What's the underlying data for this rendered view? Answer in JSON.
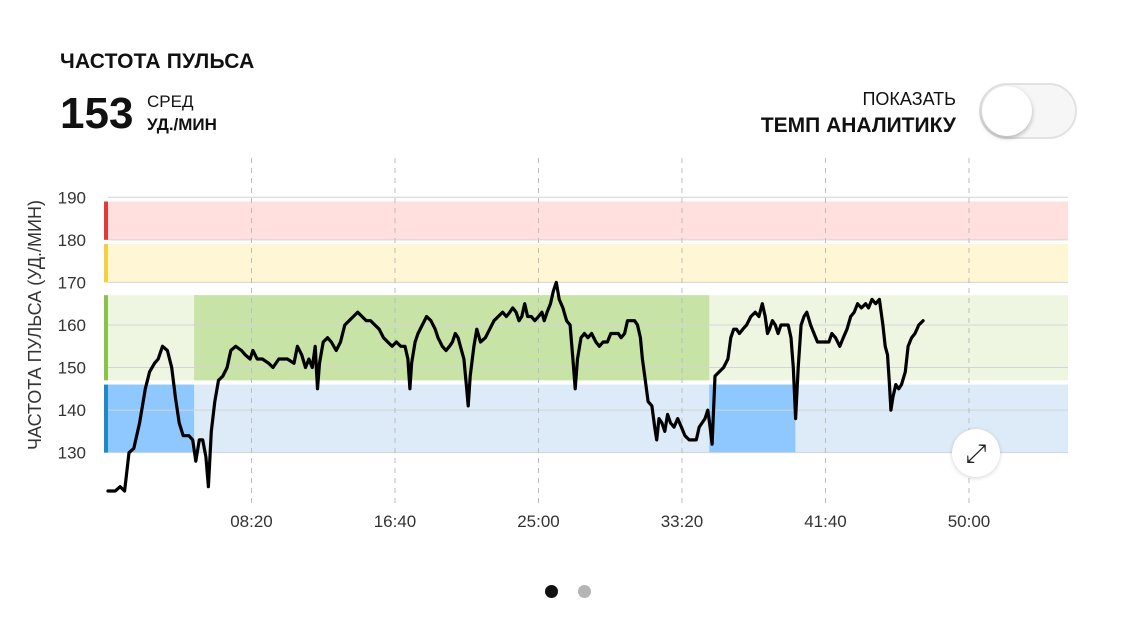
{
  "header": {
    "title": "ЧАСТОТА ПУЛЬСА",
    "avg_value": "153",
    "avg_label": "СРЕД",
    "avg_unit": "УД./МИН"
  },
  "toggle": {
    "line1": "ПОКАЗАТЬ",
    "line2": "ТЕМП АНАЛИТИКУ",
    "on": false
  },
  "controls": {
    "expand_icon": "expand-icon",
    "pager_dots": 2,
    "active_dot": 0
  },
  "chart_data": {
    "type": "line",
    "title": "",
    "xlabel": "",
    "ylabel": "ЧАСТОТА ПУЛЬСА (УД./МИН)",
    "xlim": [
      0,
      3345
    ],
    "ylim": [
      121,
      191
    ],
    "y_ticks": [
      190,
      180,
      170,
      160,
      150,
      140,
      130
    ],
    "x_ticks": [
      {
        "value": 500,
        "label": "08:20"
      },
      {
        "value": 1000,
        "label": "16:40"
      },
      {
        "value": 1500,
        "label": "25:00"
      },
      {
        "value": 2000,
        "label": "33:20"
      },
      {
        "value": 2500,
        "label": "41:40"
      },
      {
        "value": 3000,
        "label": "50:00"
      }
    ],
    "x_tick_labels_visible": [
      500,
      1000,
      1500,
      2000,
      2500,
      3000
    ],
    "x_grid_dashed": [
      500,
      1000,
      1500,
      2000,
      2500,
      3000
    ],
    "zones": [
      {
        "from": 180,
        "to": 189,
        "bar_color": "#e53935",
        "fill": "#ffe0de"
      },
      {
        "from": 170,
        "to": 179,
        "bar_color": "#f4d03f",
        "fill": "#fff6d6"
      },
      {
        "from": 147,
        "to": 167,
        "bar_color": "#8bc34a",
        "fill": "#eef6e2"
      },
      {
        "from": 130,
        "to": 146,
        "bar_color": "#1e88c8",
        "fill": "#dcebf7"
      }
    ],
    "highlights": [
      {
        "x_from": 0,
        "x_to": 300,
        "y_from": 130,
        "y_to": 146,
        "color": "#8ec8ff"
      },
      {
        "x_from": 300,
        "x_to": 2095,
        "y_from": 147,
        "y_to": 167,
        "color": "#c7e3a6"
      },
      {
        "x_from": 2095,
        "x_to": 2395,
        "y_from": 130,
        "y_to": 146,
        "color": "#8ec8ff"
      }
    ],
    "series": [
      {
        "color": "#000000",
        "points": [
          [
            0,
            121
          ],
          [
            25,
            121
          ],
          [
            42,
            122
          ],
          [
            58,
            121
          ],
          [
            73,
            130
          ],
          [
            90,
            131
          ],
          [
            110,
            137
          ],
          [
            130,
            145
          ],
          [
            145,
            149
          ],
          [
            162,
            151
          ],
          [
            175,
            152
          ],
          [
            190,
            155
          ],
          [
            207,
            154
          ],
          [
            222,
            150
          ],
          [
            235,
            143
          ],
          [
            248,
            137
          ],
          [
            262,
            134
          ],
          [
            282,
            134
          ],
          [
            295,
            133
          ],
          [
            306,
            128
          ],
          [
            318,
            133
          ],
          [
            330,
            133
          ],
          [
            341,
            129
          ],
          [
            350,
            122
          ],
          [
            360,
            135
          ],
          [
            372,
            142
          ],
          [
            385,
            147
          ],
          [
            400,
            148
          ],
          [
            415,
            150
          ],
          [
            428,
            154
          ],
          [
            445,
            155
          ],
          [
            465,
            154
          ],
          [
            478,
            153
          ],
          [
            495,
            152
          ],
          [
            505,
            154
          ],
          [
            520,
            152
          ],
          [
            538,
            152
          ],
          [
            560,
            151
          ],
          [
            575,
            150
          ],
          [
            595,
            152
          ],
          [
            625,
            152
          ],
          [
            648,
            151
          ],
          [
            660,
            155
          ],
          [
            675,
            153
          ],
          [
            688,
            150
          ],
          [
            700,
            152
          ],
          [
            712,
            150
          ],
          [
            722,
            155
          ],
          [
            730,
            145
          ],
          [
            737,
            151
          ],
          [
            750,
            156
          ],
          [
            765,
            157
          ],
          [
            778,
            156
          ],
          [
            795,
            154
          ],
          [
            810,
            156
          ],
          [
            825,
            160
          ],
          [
            840,
            161
          ],
          [
            855,
            162
          ],
          [
            870,
            163
          ],
          [
            885,
            162
          ],
          [
            900,
            161
          ],
          [
            915,
            161
          ],
          [
            930,
            160
          ],
          [
            945,
            159
          ],
          [
            960,
            157
          ],
          [
            975,
            156
          ],
          [
            990,
            155
          ],
          [
            1005,
            156
          ],
          [
            1020,
            155
          ],
          [
            1035,
            155
          ],
          [
            1045,
            152
          ],
          [
            1052,
            145
          ],
          [
            1058,
            151
          ],
          [
            1070,
            156
          ],
          [
            1080,
            158
          ],
          [
            1095,
            160
          ],
          [
            1110,
            162
          ],
          [
            1125,
            161
          ],
          [
            1140,
            159
          ],
          [
            1150,
            157
          ],
          [
            1165,
            155
          ],
          [
            1178,
            154
          ],
          [
            1190,
            155
          ],
          [
            1200,
            156
          ],
          [
            1210,
            158
          ],
          [
            1220,
            157
          ],
          [
            1228,
            155
          ],
          [
            1240,
            152
          ],
          [
            1250,
            145
          ],
          [
            1255,
            141
          ],
          [
            1262,
            148
          ],
          [
            1275,
            155
          ],
          [
            1285,
            159
          ],
          [
            1298,
            156
          ],
          [
            1315,
            157
          ],
          [
            1330,
            159
          ],
          [
            1345,
            161
          ],
          [
            1360,
            162
          ],
          [
            1375,
            163
          ],
          [
            1388,
            162
          ],
          [
            1400,
            163
          ],
          [
            1410,
            164
          ],
          [
            1422,
            163
          ],
          [
            1432,
            161
          ],
          [
            1442,
            162
          ],
          [
            1452,
            165
          ],
          [
            1462,
            162
          ],
          [
            1475,
            162
          ],
          [
            1487,
            161
          ],
          [
            1500,
            162
          ],
          [
            1512,
            163
          ],
          [
            1520,
            161
          ],
          [
            1530,
            163
          ],
          [
            1542,
            165
          ],
          [
            1552,
            168
          ],
          [
            1562,
            170
          ],
          [
            1572,
            166
          ],
          [
            1585,
            164
          ],
          [
            1598,
            161
          ],
          [
            1610,
            160
          ],
          [
            1620,
            152
          ],
          [
            1628,
            145
          ],
          [
            1636,
            152
          ],
          [
            1648,
            157
          ],
          [
            1660,
            158
          ],
          [
            1672,
            157
          ],
          [
            1685,
            158
          ],
          [
            1700,
            156
          ],
          [
            1712,
            155
          ],
          [
            1725,
            156
          ],
          [
            1740,
            156
          ],
          [
            1752,
            158
          ],
          [
            1765,
            158
          ],
          [
            1778,
            158
          ],
          [
            1788,
            157
          ],
          [
            1800,
            158
          ],
          [
            1810,
            161
          ],
          [
            1822,
            161
          ],
          [
            1835,
            161
          ],
          [
            1845,
            160
          ],
          [
            1855,
            157
          ],
          [
            1862,
            152
          ],
          [
            1872,
            147
          ],
          [
            1882,
            142
          ],
          [
            1895,
            141
          ],
          [
            1905,
            136
          ],
          [
            1912,
            133
          ],
          [
            1920,
            138
          ],
          [
            1930,
            137
          ],
          [
            1940,
            135
          ],
          [
            1950,
            139
          ],
          [
            1960,
            137
          ],
          [
            1972,
            136
          ],
          [
            1985,
            138
          ],
          [
            1998,
            136
          ],
          [
            2010,
            134
          ],
          [
            2025,
            133
          ],
          [
            2040,
            133
          ],
          [
            2050,
            133
          ],
          [
            2060,
            136
          ],
          [
            2070,
            137
          ],
          [
            2080,
            138
          ],
          [
            2090,
            140
          ],
          [
            2098,
            136
          ],
          [
            2105,
            132
          ],
          [
            2115,
            148
          ],
          [
            2130,
            149
          ],
          [
            2145,
            150
          ],
          [
            2160,
            152
          ],
          [
            2170,
            157
          ],
          [
            2180,
            159
          ],
          [
            2190,
            159
          ],
          [
            2200,
            158
          ],
          [
            2212,
            159
          ],
          [
            2225,
            160
          ],
          [
            2240,
            162
          ],
          [
            2255,
            163
          ],
          [
            2268,
            162
          ],
          [
            2280,
            165
          ],
          [
            2290,
            162
          ],
          [
            2298,
            158
          ],
          [
            2305,
            159
          ],
          [
            2315,
            161
          ],
          [
            2325,
            160
          ],
          [
            2335,
            158
          ],
          [
            2345,
            160
          ],
          [
            2358,
            160
          ],
          [
            2370,
            160
          ],
          [
            2380,
            157
          ],
          [
            2388,
            150
          ],
          [
            2396,
            138
          ],
          [
            2405,
            150
          ],
          [
            2415,
            160
          ],
          [
            2425,
            162
          ],
          [
            2435,
            163
          ],
          [
            2448,
            160
          ],
          [
            2460,
            158
          ],
          [
            2472,
            156
          ],
          [
            2485,
            156
          ],
          [
            2500,
            156
          ],
          [
            2512,
            156
          ],
          [
            2522,
            158
          ],
          [
            2535,
            157
          ],
          [
            2550,
            155
          ],
          [
            2562,
            157
          ],
          [
            2575,
            159
          ],
          [
            2588,
            162
          ],
          [
            2600,
            163
          ],
          [
            2612,
            165
          ],
          [
            2625,
            164
          ],
          [
            2640,
            165
          ],
          [
            2650,
            164
          ],
          [
            2662,
            166
          ],
          [
            2675,
            165
          ],
          [
            2688,
            166
          ],
          [
            2700,
            160
          ],
          [
            2708,
            155
          ],
          [
            2716,
            153
          ],
          [
            2722,
            147
          ],
          [
            2728,
            140
          ],
          [
            2735,
            143
          ],
          [
            2745,
            146
          ],
          [
            2755,
            145
          ],
          [
            2765,
            146
          ],
          [
            2778,
            149
          ],
          [
            2788,
            155
          ],
          [
            2800,
            157
          ],
          [
            2812,
            158
          ],
          [
            2825,
            160
          ],
          [
            2840,
            161
          ]
        ]
      }
    ]
  }
}
